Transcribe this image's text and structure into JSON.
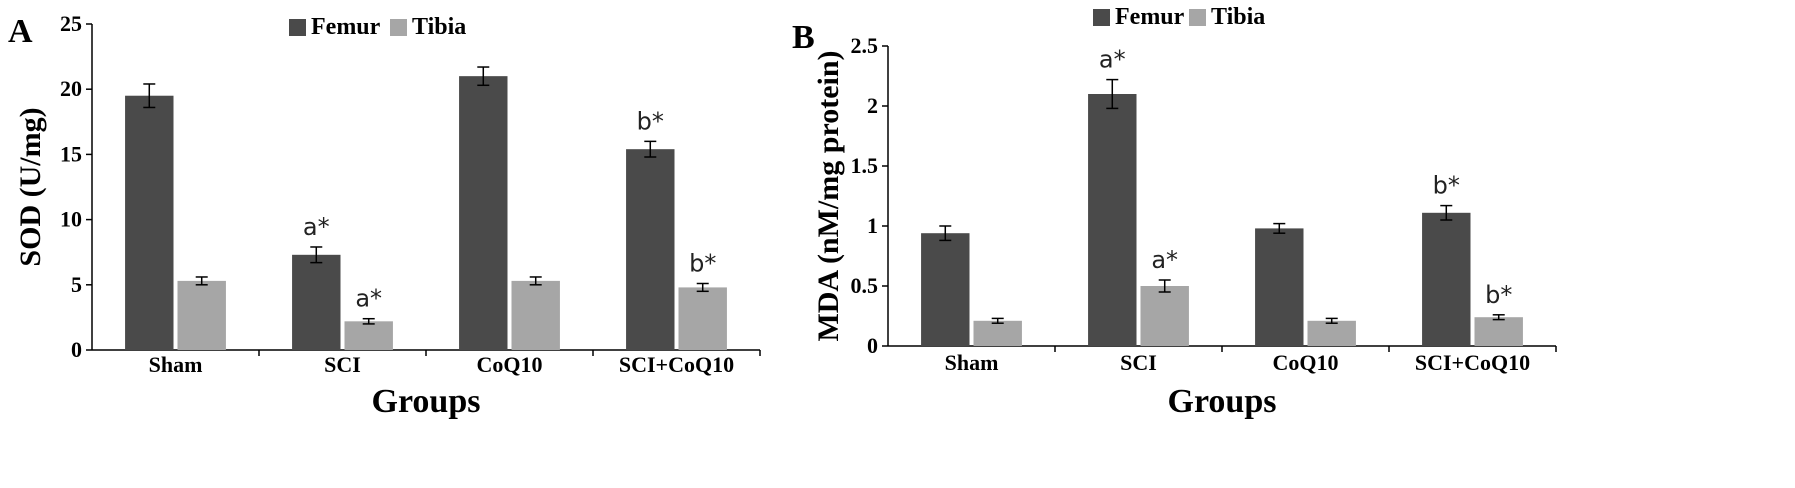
{
  "figure": {
    "panels": [
      "A",
      "B"
    ]
  },
  "chart_data": [
    {
      "type": "bar",
      "panel": "A",
      "title": "",
      "xlabel": "Groups",
      "ylabel": "SOD (U/mg)",
      "ylim": [
        0,
        25
      ],
      "yticks": [
        0,
        5,
        10,
        15,
        20,
        25
      ],
      "categories": [
        "Sham",
        "SCI",
        "CoQ10",
        "SCI+CoQ10"
      ],
      "legend_position": "top",
      "series": [
        {
          "name": "Femur",
          "color": "#4a4a4a",
          "values": [
            19.5,
            7.3,
            21.0,
            15.4
          ],
          "errors": [
            0.9,
            0.6,
            0.7,
            0.6
          ],
          "annotations": [
            "",
            "a*",
            "",
            "b*"
          ]
        },
        {
          "name": "Tibia",
          "color": "#a6a6a6",
          "values": [
            5.3,
            2.2,
            5.3,
            4.8
          ],
          "errors": [
            0.3,
            0.2,
            0.3,
            0.3
          ],
          "annotations": [
            "",
            "a*",
            "",
            "b*"
          ]
        }
      ]
    },
    {
      "type": "bar",
      "panel": "B",
      "title": "",
      "xlabel": "Groups",
      "ylabel": "MDA (nM/mg protein)",
      "ylim": [
        0,
        2.5
      ],
      "yticks": [
        0,
        0.5,
        1,
        1.5,
        2,
        2.5
      ],
      "categories": [
        "Sham",
        "SCI",
        "CoQ10",
        "SCI+CoQ10"
      ],
      "legend_position": "top",
      "series": [
        {
          "name": "Femur",
          "color": "#4a4a4a",
          "values": [
            0.94,
            2.1,
            0.98,
            1.11
          ],
          "errors": [
            0.06,
            0.12,
            0.04,
            0.06
          ],
          "annotations": [
            "",
            "a*",
            "",
            "b*"
          ]
        },
        {
          "name": "Tibia",
          "color": "#a6a6a6",
          "values": [
            0.21,
            0.5,
            0.21,
            0.24
          ],
          "errors": [
            0.02,
            0.05,
            0.02,
            0.02
          ],
          "annotations": [
            "",
            "a*",
            "",
            "b*"
          ]
        }
      ]
    }
  ]
}
